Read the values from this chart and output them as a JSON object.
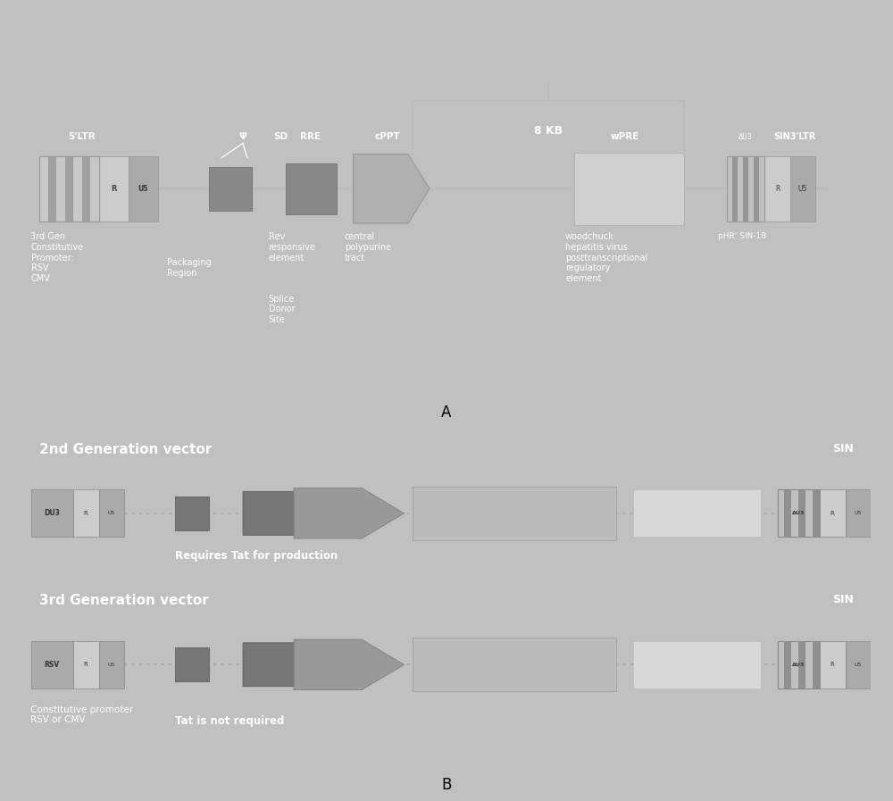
{
  "bg_outer": "#c0c0c0",
  "bg_panel_a": "#2e2e2e",
  "bg_panel_b": "#3c3c3c",
  "text_white": "#ffffff",
  "text_dark": "#222222",
  "label_A": "A",
  "label_B": "B",
  "panel_A": {
    "size_label": "8 KB",
    "left_ltr_label": "5'LTR",
    "psi_label": "Ψ",
    "sd_label": "SD",
    "rre_label": "RRE",
    "cppt_label": "cPPT",
    "wpre_label": "wPRE",
    "sin_label": "SIN3'LTR",
    "delta_u3": "ΔU3",
    "ann1": "3rd Gen\nConstitutive\nPromoter:\nRSV\nCMV",
    "ann2": "Packaging\nRegion",
    "ann3": "Rev\nresponsive\nelement",
    "ann4": "Splice\nDonor\nSite",
    "ann5": "central\npolypurine\ntract",
    "ann6": "woodchuck\nhepatitis virus\nposttranscriptional\nregulatory\nelement",
    "ann7": "pHR' SIN-18"
  },
  "panel_B": {
    "gen2_title": "2nd Generation vector",
    "gen2_sin": "SIN",
    "gen2_note": "Requires Tat for production",
    "gen3_title": "3rd Generation vector",
    "gen3_sin": "SIN",
    "gen3_note1": "Constitutive promoter\nRSV or CMV",
    "gen3_note2": "Tat is not required"
  }
}
